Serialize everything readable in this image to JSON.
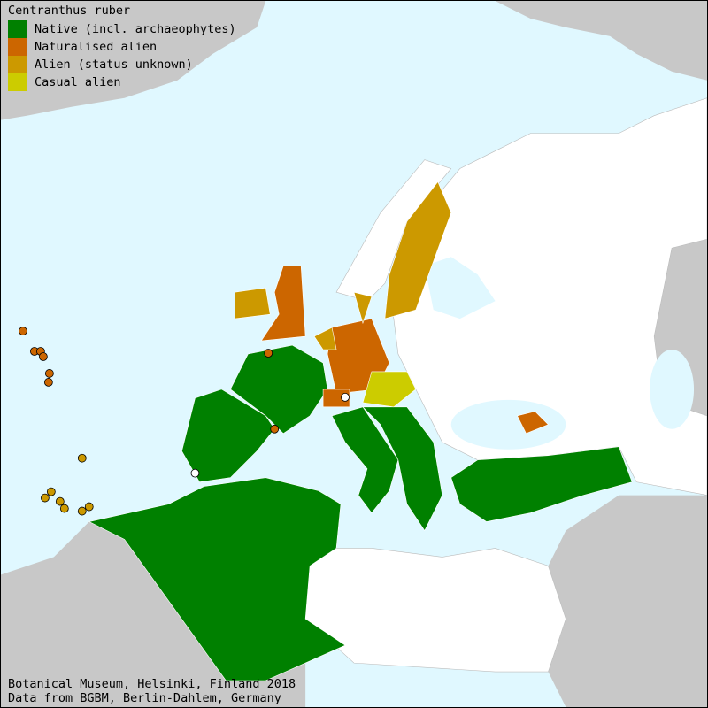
{
  "legend": {
    "title": "Centranthus ruber",
    "items": [
      {
        "key": "native",
        "label": "Native (incl. archaeophytes)",
        "color": "#008000"
      },
      {
        "key": "naturalised",
        "label": "Naturalised alien",
        "color": "#cc6600"
      },
      {
        "key": "alien",
        "label": "Alien (status unknown)",
        "color": "#cc9900"
      },
      {
        "key": "casual",
        "label": "Casual alien",
        "color": "#cccc00"
      }
    ]
  },
  "colors": {
    "sea": "#e0f8ff",
    "land_outside": "#c8c8c8",
    "land_no_record": "#ffffff",
    "point_unknown": "#ffffff"
  },
  "footer": {
    "line1": "Botanical Museum, Helsinki, Finland 2018",
    "line2": "Data from BGBM, Berlin-Dahlem, Germany"
  }
}
